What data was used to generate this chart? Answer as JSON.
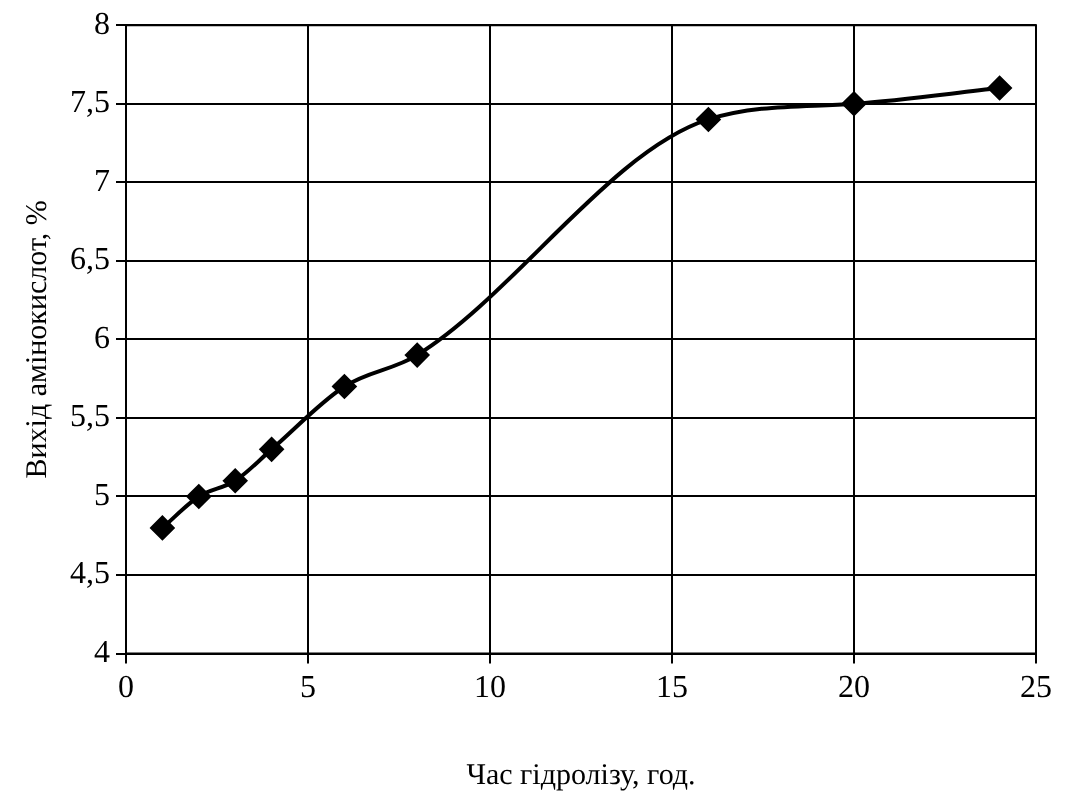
{
  "chart_data": {
    "type": "line",
    "xlabel": "Час гідролізу, год.",
    "ylabel": "Вихід амінокислот, %",
    "x": [
      1,
      2,
      3,
      4,
      6,
      8,
      16,
      20,
      24
    ],
    "series": [
      {
        "color": "#000000",
        "values": [
          4.8,
          5.0,
          5.1,
          5.3,
          5.7,
          5.9,
          7.4,
          7.5,
          7.6
        ]
      }
    ],
    "xlim": [
      0,
      25
    ],
    "xticks": [
      0,
      5,
      10,
      15,
      20,
      25
    ],
    "ylim": [
      4,
      8
    ],
    "yticks": [
      4,
      {
        "value": 4.5,
        "label": "4,5"
      },
      5,
      {
        "value": 5.5,
        "label": "5,5"
      },
      6,
      {
        "value": 6.5,
        "label": "6,5"
      },
      7,
      {
        "value": 7.5,
        "label": "7,5"
      },
      8
    ],
    "grid": true,
    "legend": false,
    "marker": "diamond",
    "line_style": "solid"
  }
}
